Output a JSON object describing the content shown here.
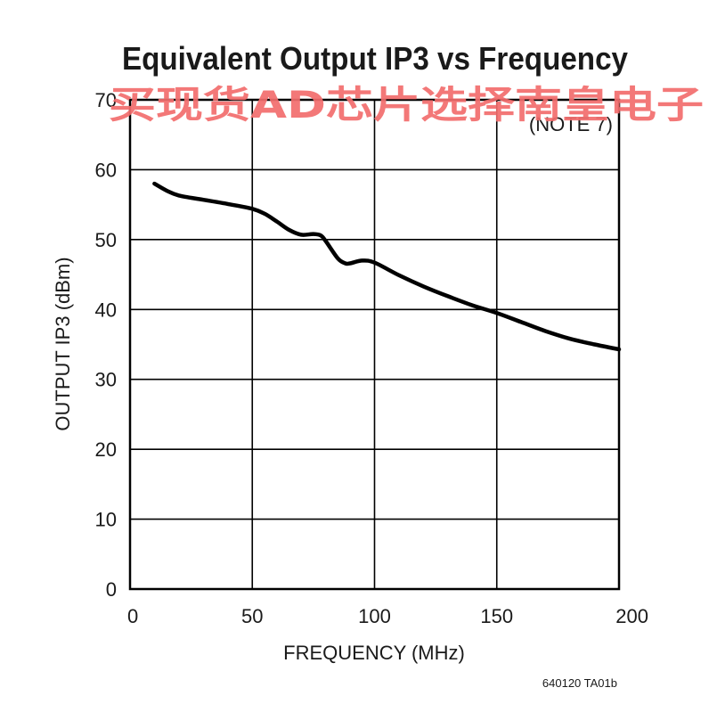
{
  "chart_data": {
    "type": "line",
    "title": "Equivalent Output IP3 vs Frequency",
    "xlabel": "FREQUENCY (MHz)",
    "ylabel": "OUTPUT IP3 (dBm)",
    "xlim": [
      0,
      200
    ],
    "ylim": [
      0,
      70
    ],
    "x_ticks": [
      0,
      50,
      100,
      150,
      200
    ],
    "y_ticks": [
      0,
      10,
      20,
      30,
      40,
      50,
      60,
      70
    ],
    "grid": true,
    "annotation": "(NOTE 7)",
    "figure_code": "640120 TA01b",
    "watermark": "买现货AD芯片选择南皇电子",
    "series": [
      {
        "x": [
          10,
          15,
          20,
          30,
          40,
          50,
          55,
          60,
          65,
          70,
          75,
          78,
          80,
          85,
          88,
          90,
          95,
          100,
          110,
          120,
          130,
          140,
          150,
          160,
          170,
          180,
          190,
          200
        ],
        "y": [
          58,
          57,
          56.3,
          55.7,
          55.1,
          54.4,
          53.7,
          52.6,
          51.4,
          50.7,
          50.8,
          50.6,
          49.8,
          47.3,
          46.6,
          46.6,
          47.0,
          46.7,
          44.9,
          43.3,
          41.9,
          40.6,
          39.5,
          38.2,
          36.9,
          35.8,
          35.0,
          34.3
        ]
      }
    ],
    "colors": {
      "line": "#000000",
      "watermark": "#f26d6d"
    }
  }
}
